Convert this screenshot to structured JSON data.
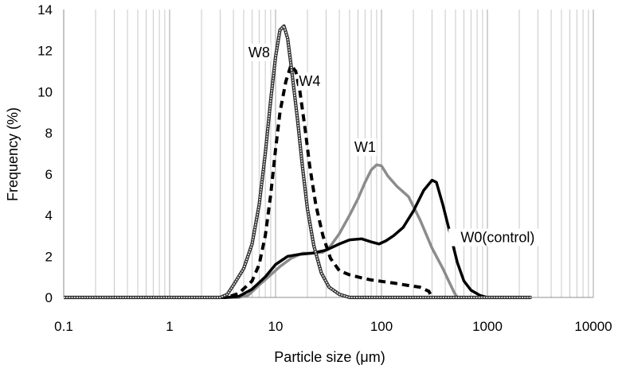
{
  "chart_data": {
    "type": "line",
    "xscale": "log",
    "xlabel": "Particle size (μm)",
    "ylabel": "Frequency (%)",
    "xlim": [
      0.1,
      10000
    ],
    "ylim": [
      0,
      14
    ],
    "x_ticks": [
      "0.1",
      "1",
      "10",
      "100",
      "1000",
      "10000"
    ],
    "y_ticks": [
      "0",
      "2",
      "4",
      "6",
      "8",
      "10",
      "12",
      "14"
    ],
    "grid": "vertical minor and major log grid",
    "series": [
      {
        "name": "W0(control)",
        "color": "#000000",
        "style": "solid-thick",
        "points": [
          [
            0.1,
            0
          ],
          [
            3.5,
            0
          ],
          [
            4.5,
            0.05
          ],
          [
            6,
            0.4
          ],
          [
            8,
            1.0
          ],
          [
            10,
            1.6
          ],
          [
            13,
            2.0
          ],
          [
            17,
            2.1
          ],
          [
            22,
            2.15
          ],
          [
            30,
            2.3
          ],
          [
            40,
            2.6
          ],
          [
            50,
            2.8
          ],
          [
            65,
            2.85
          ],
          [
            80,
            2.7
          ],
          [
            95,
            2.6
          ],
          [
            110,
            2.75
          ],
          [
            130,
            3.0
          ],
          [
            160,
            3.4
          ],
          [
            200,
            4.2
          ],
          [
            250,
            5.2
          ],
          [
            300,
            5.7
          ],
          [
            330,
            5.6
          ],
          [
            380,
            4.5
          ],
          [
            450,
            3.0
          ],
          [
            520,
            1.7
          ],
          [
            600,
            0.8
          ],
          [
            700,
            0.35
          ],
          [
            850,
            0.1
          ],
          [
            1000,
            0
          ],
          [
            2600,
            0
          ]
        ]
      },
      {
        "name": "W1",
        "color": "#8c8c8c",
        "style": "solid-thick",
        "points": [
          [
            0.1,
            0
          ],
          [
            4.5,
            0
          ],
          [
            5.5,
            0.1
          ],
          [
            7,
            0.6
          ],
          [
            9,
            1.1
          ],
          [
            11,
            1.5
          ],
          [
            14,
            1.9
          ],
          [
            18,
            2.15
          ],
          [
            23,
            2.15
          ],
          [
            28,
            2.2
          ],
          [
            33,
            2.5
          ],
          [
            40,
            3.1
          ],
          [
            50,
            4.0
          ],
          [
            60,
            4.8
          ],
          [
            70,
            5.6
          ],
          [
            80,
            6.2
          ],
          [
            90,
            6.45
          ],
          [
            100,
            6.4
          ],
          [
            115,
            5.9
          ],
          [
            140,
            5.4
          ],
          [
            180,
            4.9
          ],
          [
            230,
            3.8
          ],
          [
            300,
            2.4
          ],
          [
            380,
            1.4
          ],
          [
            440,
            0.7
          ],
          [
            490,
            0.2
          ],
          [
            520,
            0
          ],
          [
            2600,
            0
          ]
        ]
      },
      {
        "name": "W4",
        "color": "#000000",
        "style": "dashed",
        "points": [
          [
            0.1,
            0
          ],
          [
            3.5,
            0
          ],
          [
            4.5,
            0.2
          ],
          [
            6,
            0.8
          ],
          [
            7,
            1.6
          ],
          [
            8,
            3.0
          ],
          [
            9,
            5.0
          ],
          [
            10,
            7.2
          ],
          [
            11,
            9.0
          ],
          [
            12.5,
            10.5
          ],
          [
            14,
            11.3
          ],
          [
            15.5,
            11.0
          ],
          [
            17,
            10.0
          ],
          [
            19,
            8.2
          ],
          [
            21,
            6.4
          ],
          [
            24,
            4.5
          ],
          [
            28,
            3.0
          ],
          [
            33,
            1.9
          ],
          [
            40,
            1.3
          ],
          [
            50,
            1.1
          ],
          [
            65,
            0.95
          ],
          [
            80,
            0.85
          ],
          [
            100,
            0.78
          ],
          [
            130,
            0.7
          ],
          [
            170,
            0.6
          ],
          [
            230,
            0.5
          ],
          [
            280,
            0.3
          ],
          [
            300,
            0
          ],
          [
            2600,
            0
          ]
        ]
      },
      {
        "name": "W8",
        "color": "#b4b4b4",
        "style": "double",
        "points": [
          [
            0.1,
            0
          ],
          [
            3,
            0
          ],
          [
            3.5,
            0.15
          ],
          [
            4,
            0.6
          ],
          [
            5,
            1.4
          ],
          [
            6,
            2.6
          ],
          [
            7,
            4.5
          ],
          [
            8,
            7.0
          ],
          [
            9,
            9.6
          ],
          [
            10,
            11.7
          ],
          [
            11,
            13.0
          ],
          [
            12,
            13.2
          ],
          [
            13,
            12.6
          ],
          [
            14,
            11.3
          ],
          [
            16,
            8.8
          ],
          [
            18,
            6.3
          ],
          [
            20,
            4.3
          ],
          [
            23,
            2.5
          ],
          [
            27,
            1.2
          ],
          [
            32,
            0.5
          ],
          [
            40,
            0.15
          ],
          [
            50,
            0
          ],
          [
            2600,
            0
          ]
        ]
      }
    ],
    "annotations": [
      {
        "text": "W8",
        "x": 7,
        "y": 11.8
      },
      {
        "text": "W4",
        "x": 21,
        "y": 10.4
      },
      {
        "text": "W1",
        "x": 70,
        "y": 7.2
      },
      {
        "text": "W0(control)",
        "x": 1250,
        "y": 2.8
      }
    ]
  }
}
